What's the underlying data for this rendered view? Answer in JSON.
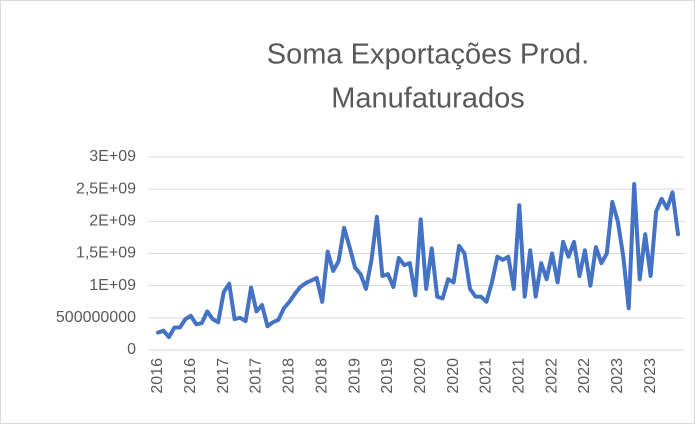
{
  "chart_data": {
    "type": "line",
    "title": [
      "Soma Exportações Prod.",
      "Manufaturados"
    ],
    "categories": [
      "2016",
      null,
      null,
      null,
      null,
      null,
      "2016",
      null,
      null,
      null,
      null,
      null,
      "2017",
      null,
      null,
      null,
      null,
      null,
      "2017",
      null,
      null,
      null,
      null,
      null,
      "2018",
      null,
      null,
      null,
      null,
      null,
      "2018",
      null,
      null,
      null,
      null,
      null,
      "2019",
      null,
      null,
      null,
      null,
      null,
      "2019",
      null,
      null,
      null,
      null,
      null,
      "2020",
      null,
      null,
      null,
      null,
      null,
      "2020",
      null,
      null,
      null,
      null,
      null,
      "2021",
      null,
      null,
      null,
      null,
      null,
      "2021",
      null,
      null,
      null,
      null,
      null,
      "2022",
      null,
      null,
      null,
      null,
      null,
      "2022",
      null,
      null,
      null,
      null,
      null,
      "2023",
      null,
      null,
      null,
      null,
      null,
      "2023",
      null,
      null,
      null,
      null,
      null
    ],
    "values": [
      270000000,
      300000000,
      200000000,
      350000000,
      350000000,
      480000000,
      530000000,
      400000000,
      420000000,
      600000000,
      480000000,
      430000000,
      900000000,
      1030000000,
      480000000,
      500000000,
      450000000,
      970000000,
      600000000,
      700000000,
      370000000,
      430000000,
      470000000,
      650000000,
      750000000,
      870000000,
      980000000,
      1040000000,
      1080000000,
      1120000000,
      750000000,
      1530000000,
      1230000000,
      1380000000,
      1900000000,
      1600000000,
      1280000000,
      1180000000,
      950000000,
      1400000000,
      2070000000,
      1150000000,
      1180000000,
      980000000,
      1430000000,
      1320000000,
      1350000000,
      850000000,
      2030000000,
      950000000,
      1580000000,
      830000000,
      800000000,
      1100000000,
      1050000000,
      1620000000,
      1500000000,
      950000000,
      830000000,
      830000000,
      750000000,
      1050000000,
      1450000000,
      1400000000,
      1450000000,
      950000000,
      2250000000,
      830000000,
      1550000000,
      830000000,
      1350000000,
      1100000000,
      1500000000,
      1050000000,
      1680000000,
      1450000000,
      1680000000,
      1150000000,
      1550000000,
      1000000000,
      1600000000,
      1350000000,
      1500000000,
      2300000000,
      2000000000,
      1450000000,
      650000000,
      2580000000,
      1100000000,
      1800000000,
      1150000000,
      2150000000,
      2350000000,
      2200000000,
      2450000000,
      1800000000
    ],
    "color": "#4472c4",
    "ylim": [
      0,
      3000000000
    ],
    "yticks": [
      0,
      500000000,
      {
        "value": 1000000000,
        "label": "1E+09"
      },
      {
        "value": 1500000000,
        "label": "1,5E+09"
      },
      {
        "value": 2000000000,
        "label": "2E+09"
      },
      {
        "value": 2500000000,
        "label": "2,5E+09"
      },
      {
        "value": 3000000000,
        "label": "3E+09"
      }
    ],
    "grid": true
  }
}
